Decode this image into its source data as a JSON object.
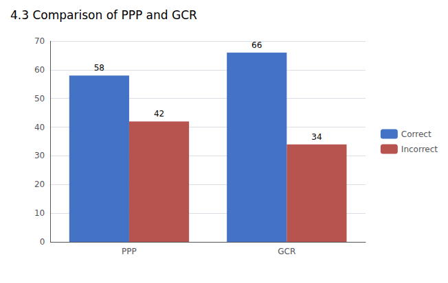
{
  "chart_data": {
    "type": "bar",
    "title": "4.3 Comparison of PPP and GCR",
    "categories": [
      "PPP",
      "GCR"
    ],
    "series": [
      {
        "name": "Correct",
        "color": "#4472C4",
        "values": [
          58,
          66
        ]
      },
      {
        "name": "Incorrect",
        "color": "#B85450",
        "values": [
          42,
          34
        ]
      }
    ],
    "ylim": [
      0,
      70
    ],
    "yticks": [
      0,
      10,
      20,
      30,
      40,
      50,
      60,
      70
    ],
    "grid": true,
    "legend": "right",
    "data_labels": true
  }
}
